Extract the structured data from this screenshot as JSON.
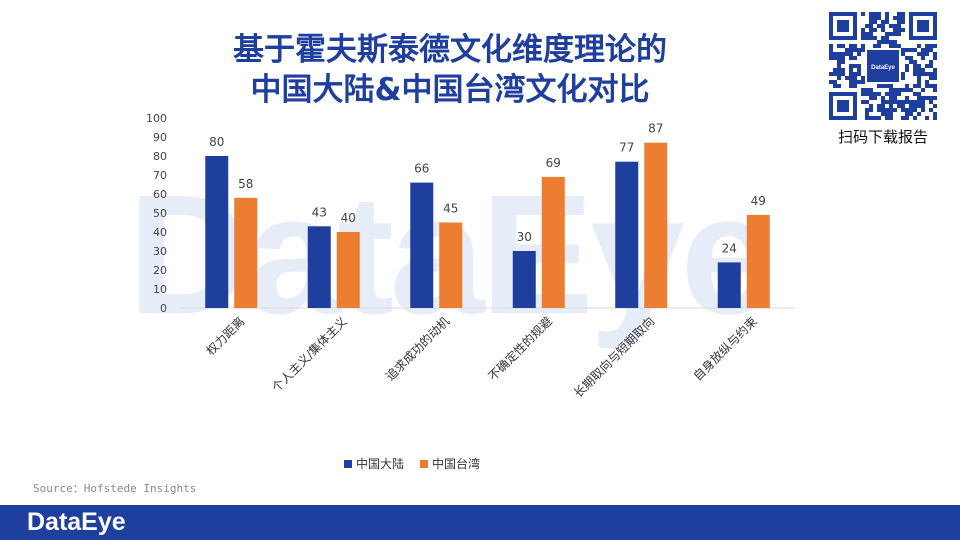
{
  "title": {
    "line1": "基于霍夫斯泰德文化维度理论的",
    "line2": "中国大陆&中国台湾文化对比"
  },
  "watermark_text": "DataEye",
  "qr": {
    "caption": "扫码下载报告",
    "center_text": "DataEye"
  },
  "source": "Source：Hofstede Insights",
  "footer": {
    "logo": "DataEye"
  },
  "colors": {
    "mainland": "#1f3f9e",
    "taiwan": "#ec7d31",
    "brand": "#1f3f9e"
  },
  "chart_data": {
    "type": "bar",
    "categories": [
      "权力距离",
      "个人主义/集体主义",
      "追求成功的动机",
      "不确定性的规避",
      "长期取向与短期取向",
      "自身放纵与约束"
    ],
    "series": [
      {
        "name": "中国大陆",
        "values": [
          80,
          43,
          66,
          30,
          77,
          24
        ]
      },
      {
        "name": "中国台湾",
        "values": [
          58,
          40,
          45,
          69,
          87,
          49
        ]
      }
    ],
    "ylim": [
      0,
      100
    ],
    "yticks": [
      0,
      10,
      20,
      30,
      40,
      50,
      60,
      70,
      80,
      90,
      100
    ],
    "data_labels": true,
    "grid": false,
    "legend": "bottom"
  }
}
